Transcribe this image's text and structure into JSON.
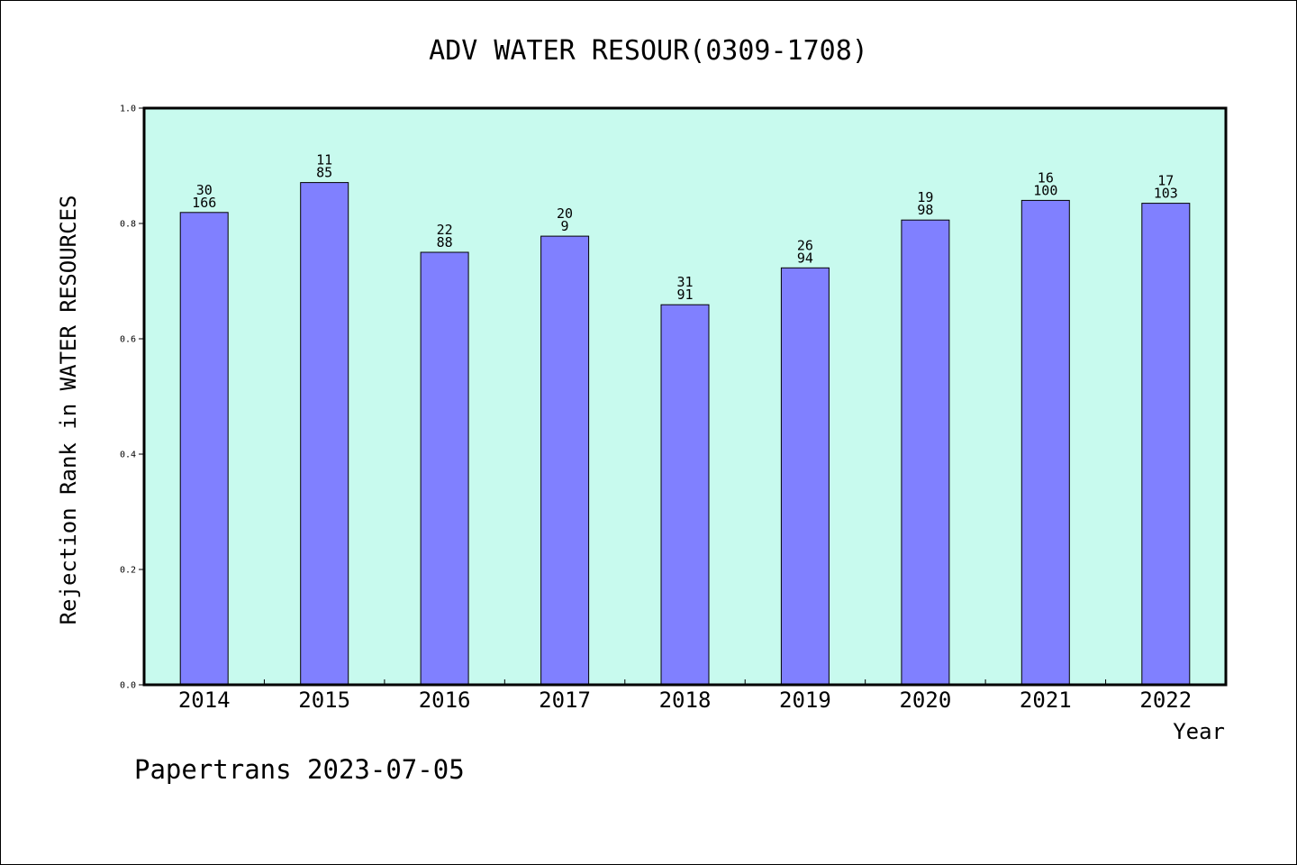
{
  "chart_data": {
    "type": "bar",
    "title": "ADV WATER RESOUR(0309-1708)",
    "xlabel": "Year",
    "ylabel": "Rejection Rank in WATER RESOURCES",
    "ylim": [
      0,
      1.0
    ],
    "yticks": [
      "0.0",
      "0.2",
      "0.4",
      "0.6",
      "0.8",
      "1.0"
    ],
    "grid": false,
    "categories": [
      "2014",
      "2015",
      "2016",
      "2017",
      "2018",
      "2019",
      "2020",
      "2021",
      "2022"
    ],
    "values": [
      0.819,
      0.871,
      0.75,
      0.778,
      0.659,
      0.723,
      0.806,
      0.84,
      0.835
    ],
    "labels_top": [
      "30",
      "11",
      "22",
      "20",
      "31",
      "26",
      "19",
      "16",
      "17"
    ],
    "labels_bottom": [
      "166",
      "85",
      "88",
      "9",
      "91",
      "94",
      "98",
      "100",
      "103"
    ],
    "colors": {
      "plot_background": "#c8faee",
      "bar_fill": "#8080ff",
      "bar_stroke": "#000000"
    }
  },
  "footer": {
    "text": "Papertrans 2023-07-05"
  }
}
